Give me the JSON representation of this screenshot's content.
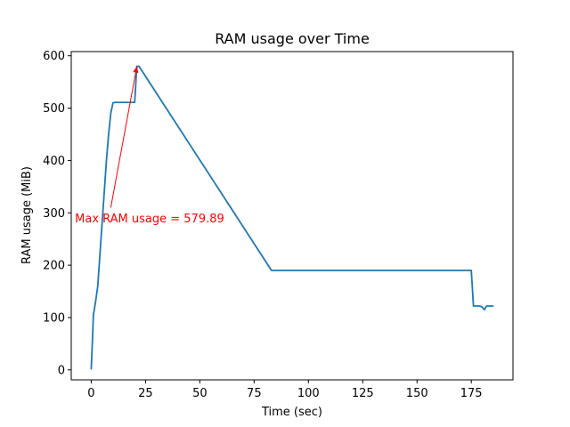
{
  "chart_data": {
    "type": "line",
    "title": "RAM usage over Time",
    "xlabel": "Time (sec)",
    "ylabel": "RAM usage (MiB)",
    "xlim": [
      -9.2,
      194.2
    ],
    "ylim": [
      -19,
      608
    ],
    "xticks": [
      0,
      25,
      50,
      75,
      100,
      125,
      150,
      175
    ],
    "yticks": [
      0,
      100,
      200,
      300,
      400,
      500,
      600
    ],
    "grid": false,
    "series_color": "#1f77b4",
    "series": [
      {
        "x": [
          0,
          0.5,
          1,
          2,
          3,
          4,
          5,
          6,
          7,
          8,
          9,
          10,
          11,
          12,
          15,
          18,
          20,
          21,
          22,
          83,
          175,
          176,
          177,
          178,
          179,
          180,
          181,
          182,
          184,
          185
        ],
        "y": [
          2,
          50,
          105,
          130,
          160,
          220,
          280,
          340,
          400,
          450,
          490,
          510,
          511,
          511,
          511,
          511,
          511,
          579.89,
          579.89,
          190,
          190,
          122,
          122,
          122,
          122,
          120,
          115,
          122,
          122,
          122
        ]
      }
    ],
    "annotations": [
      {
        "text": "Max RAM usage = 579.89",
        "color": "#ff0000",
        "xy": [
          21,
          579.89
        ],
        "xytext": [
          9,
          310
        ],
        "text_anchor_x": -7.5,
        "text_anchor_y": 282
      }
    ]
  }
}
